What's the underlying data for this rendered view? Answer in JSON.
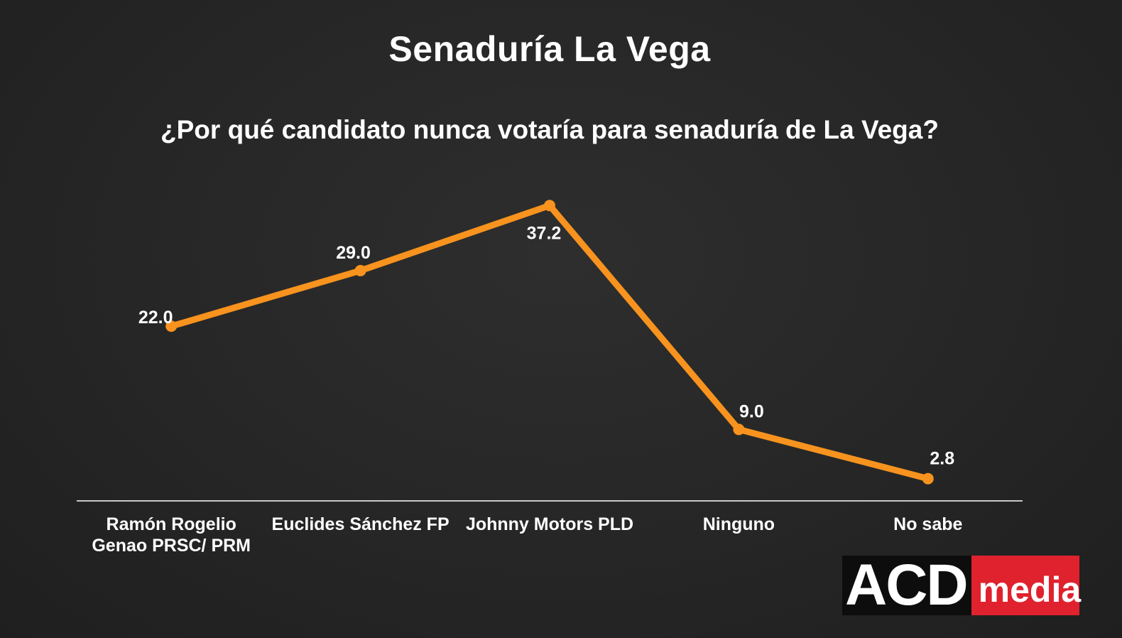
{
  "title": "Senaduría La Vega",
  "subtitle": "¿Por qué candidato nunca votaría para senaduría de La Vega?",
  "logo": {
    "acd": "ACD",
    "media": "media",
    "colors": {
      "acd_bg": "#0d0d0d",
      "media_bg": "#e0222e"
    }
  },
  "chart_data": {
    "type": "line",
    "title": "Senaduría La Vega",
    "subtitle": "¿Por qué candidato nunca votaría para senaduría de La Vega?",
    "categories": [
      [
        "Ramón Rogelio",
        "Genao PRSC/ PRM"
      ],
      [
        "Euclides Sánchez FP"
      ],
      [
        "Johnny Motors PLD"
      ],
      [
        "Ninguno"
      ],
      [
        "No sabe"
      ]
    ],
    "series": [
      {
        "values": [
          22.0,
          29.0,
          37.2,
          9.0,
          2.8
        ],
        "labels": [
          "22.0",
          "29.0",
          "37.2",
          "9.0",
          "2.8"
        ],
        "color": "#f7931e"
      }
    ],
    "ylim": [
      0,
      40
    ],
    "grid": false,
    "legend": "none",
    "axis_color": "#ffffff"
  }
}
